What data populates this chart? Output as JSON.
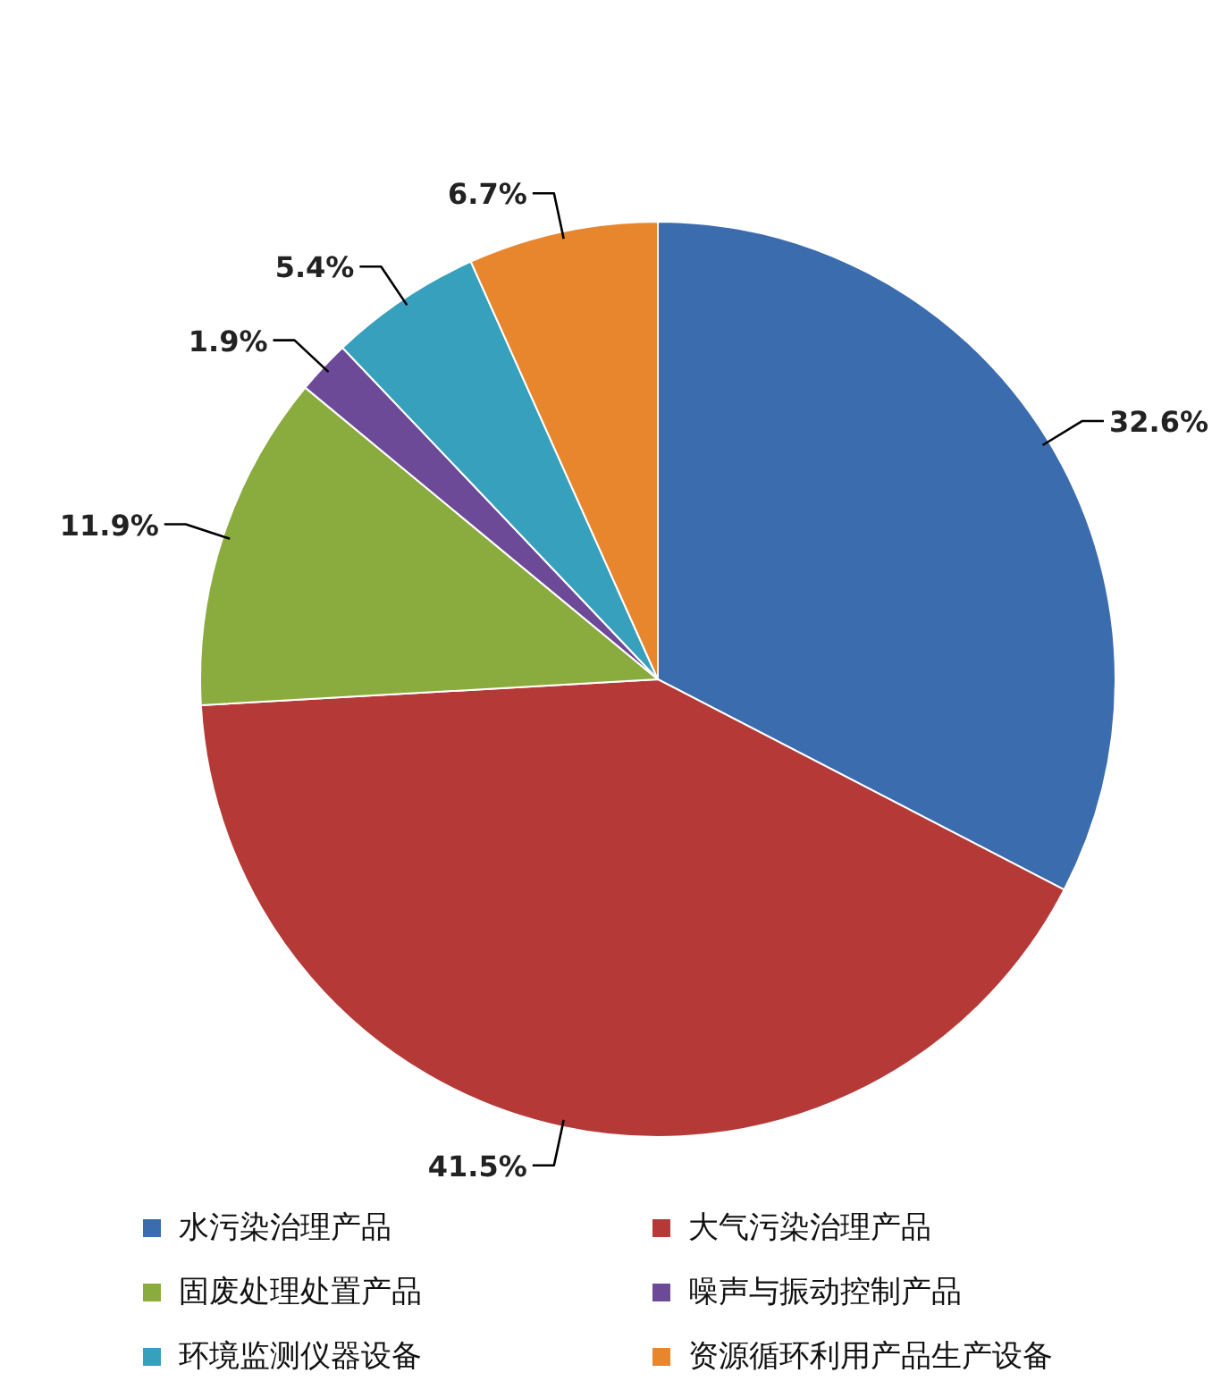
{
  "chart_data": {
    "type": "pie",
    "categories": [
      "水污染治理产品",
      "大气污染治理产品",
      "固废处理处置产品",
      "噪声与振动控制产品",
      "环境监测仪器设备",
      "资源循环利用产品生产设备"
    ],
    "values": [
      32.6,
      41.5,
      11.9,
      1.9,
      5.4,
      6.7
    ],
    "value_labels": [
      "32.6%",
      "41.5%",
      "11.9%",
      "1.9%",
      "5.4%",
      "6.7%"
    ],
    "colors": [
      "#3a6cae",
      "#b53a37",
      "#8aac3e",
      "#6d4a98",
      "#37a0bd",
      "#e8862d"
    ],
    "legend": "bottom"
  }
}
